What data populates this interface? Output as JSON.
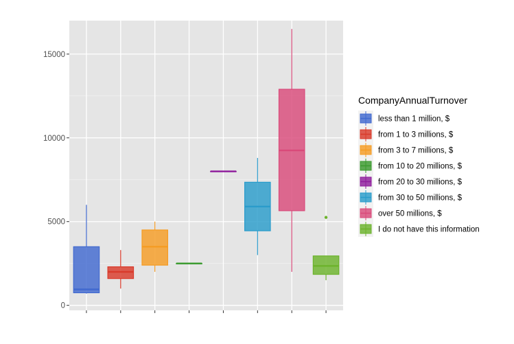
{
  "chart_data": {
    "type": "boxplot",
    "title": "",
    "xlabel": "",
    "ylabel": "",
    "ylim": [
      -300,
      17000
    ],
    "yticks": [
      0,
      5000,
      10000,
      15000
    ],
    "ytick_labels": [
      "0",
      "5000",
      "10000",
      "15000"
    ],
    "grid": true,
    "legend": {
      "title": "CompanyAnnualTurnover",
      "position": "right"
    },
    "series": [
      {
        "name": "less than 1 million, $",
        "color": "#4169cf",
        "min": 700,
        "q1": 750,
        "median": 950,
        "q3": 3500,
        "max": 6000,
        "outliers": []
      },
      {
        "name": "from 1 to 3 millions, $",
        "color": "#d93a2b",
        "min": 1000,
        "q1": 1600,
        "median": 2000,
        "q3": 2300,
        "max": 3300,
        "outliers": []
      },
      {
        "name": "from 3 to 7 millions, $",
        "color": "#f59c24",
        "min": 2000,
        "q1": 2400,
        "median": 3500,
        "q3": 4500,
        "max": 5000,
        "outliers": []
      },
      {
        "name": "from 10 to 20  millions, $",
        "color": "#3a9a2e",
        "min": 2500,
        "q1": 2500,
        "median": 2500,
        "q3": 2500,
        "max": 2500,
        "outliers": []
      },
      {
        "name": "from 20 to 30  millions, $",
        "color": "#8f1d9c",
        "min": 8000,
        "q1": 8000,
        "median": 8000,
        "q3": 8000,
        "max": 8000,
        "outliers": []
      },
      {
        "name": "from 30 to 50 millions, $",
        "color": "#2a9ccb",
        "min": 3000,
        "q1": 4450,
        "median": 5900,
        "q3": 7350,
        "max": 8800,
        "outliers": []
      },
      {
        "name": "over 50  millions, $",
        "color": "#d94a7a",
        "min": 2000,
        "q1": 5650,
        "median": 9250,
        "q3": 12900,
        "max": 16500,
        "outliers": []
      },
      {
        "name": "I do not have this information",
        "color": "#6cb32c",
        "min": 1500,
        "q1": 1850,
        "median": 2350,
        "q3": 2950,
        "max": 2950,
        "outliers": [
          5250
        ]
      }
    ]
  }
}
